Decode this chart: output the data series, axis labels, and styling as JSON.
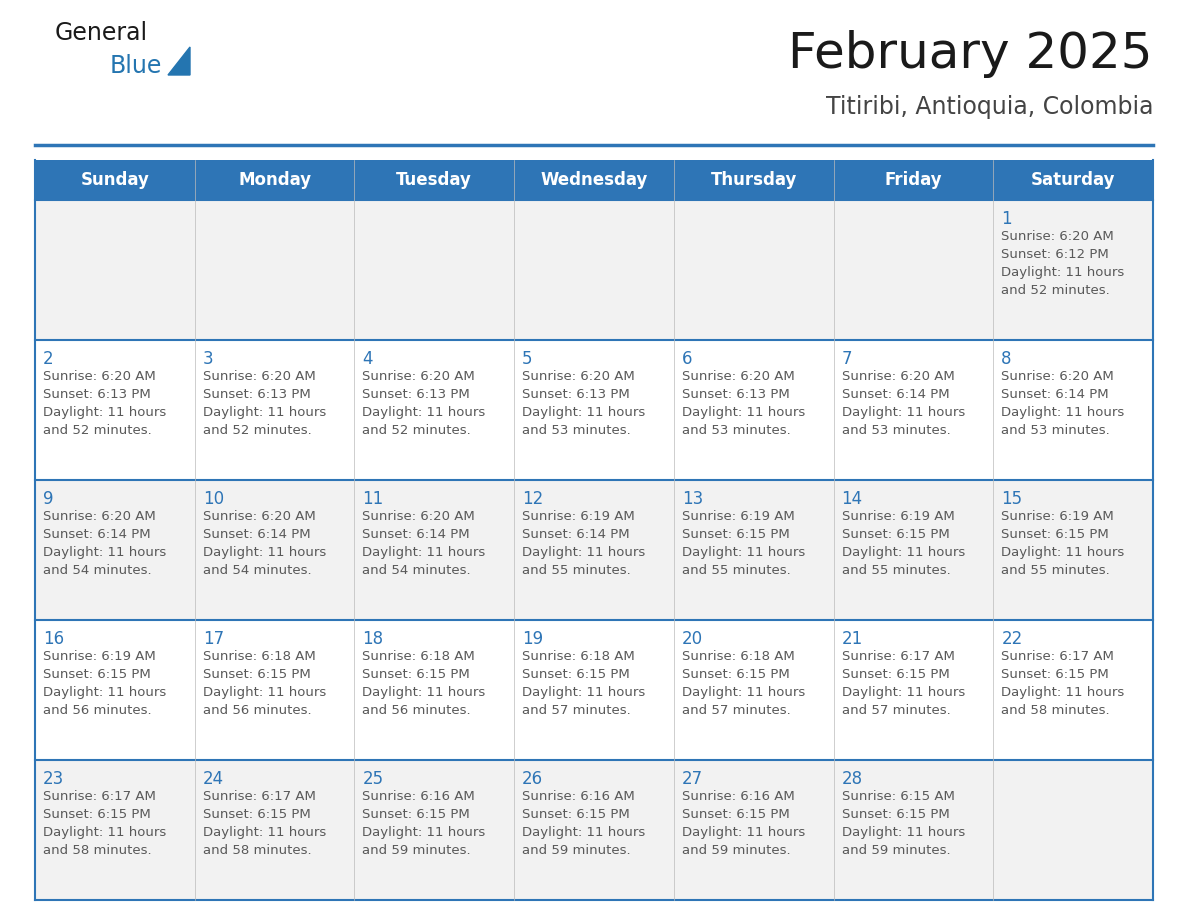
{
  "title": "February 2025",
  "subtitle": "Titiribi, Antioquia, Colombia",
  "days_of_week": [
    "Sunday",
    "Monday",
    "Tuesday",
    "Wednesday",
    "Thursday",
    "Friday",
    "Saturday"
  ],
  "header_bg": "#2E75B6",
  "header_text": "#FFFFFF",
  "row_bg_light": "#F2F2F2",
  "row_bg_white": "#FFFFFF",
  "cell_text_color": "#595959",
  "day_num_color": "#2E75B6",
  "border_color": "#2E75B6",
  "title_color": "#1a1a1a",
  "subtitle_color": "#444444",
  "logo_general_color": "#1a1a1a",
  "logo_blue_color": "#2475B0",
  "calendar_data": [
    [
      null,
      null,
      null,
      null,
      null,
      null,
      {
        "day": 1,
        "sunrise": "6:20 AM",
        "sunset": "6:12 PM",
        "daylight": "11 hours and 52 minutes."
      }
    ],
    [
      {
        "day": 2,
        "sunrise": "6:20 AM",
        "sunset": "6:13 PM",
        "daylight": "11 hours and 52 minutes."
      },
      {
        "day": 3,
        "sunrise": "6:20 AM",
        "sunset": "6:13 PM",
        "daylight": "11 hours and 52 minutes."
      },
      {
        "day": 4,
        "sunrise": "6:20 AM",
        "sunset": "6:13 PM",
        "daylight": "11 hours and 52 minutes."
      },
      {
        "day": 5,
        "sunrise": "6:20 AM",
        "sunset": "6:13 PM",
        "daylight": "11 hours and 53 minutes."
      },
      {
        "day": 6,
        "sunrise": "6:20 AM",
        "sunset": "6:13 PM",
        "daylight": "11 hours and 53 minutes."
      },
      {
        "day": 7,
        "sunrise": "6:20 AM",
        "sunset": "6:14 PM",
        "daylight": "11 hours and 53 minutes."
      },
      {
        "day": 8,
        "sunrise": "6:20 AM",
        "sunset": "6:14 PM",
        "daylight": "11 hours and 53 minutes."
      }
    ],
    [
      {
        "day": 9,
        "sunrise": "6:20 AM",
        "sunset": "6:14 PM",
        "daylight": "11 hours and 54 minutes."
      },
      {
        "day": 10,
        "sunrise": "6:20 AM",
        "sunset": "6:14 PM",
        "daylight": "11 hours and 54 minutes."
      },
      {
        "day": 11,
        "sunrise": "6:20 AM",
        "sunset": "6:14 PM",
        "daylight": "11 hours and 54 minutes."
      },
      {
        "day": 12,
        "sunrise": "6:19 AM",
        "sunset": "6:14 PM",
        "daylight": "11 hours and 55 minutes."
      },
      {
        "day": 13,
        "sunrise": "6:19 AM",
        "sunset": "6:15 PM",
        "daylight": "11 hours and 55 minutes."
      },
      {
        "day": 14,
        "sunrise": "6:19 AM",
        "sunset": "6:15 PM",
        "daylight": "11 hours and 55 minutes."
      },
      {
        "day": 15,
        "sunrise": "6:19 AM",
        "sunset": "6:15 PM",
        "daylight": "11 hours and 55 minutes."
      }
    ],
    [
      {
        "day": 16,
        "sunrise": "6:19 AM",
        "sunset": "6:15 PM",
        "daylight": "11 hours and 56 minutes."
      },
      {
        "day": 17,
        "sunrise": "6:18 AM",
        "sunset": "6:15 PM",
        "daylight": "11 hours and 56 minutes."
      },
      {
        "day": 18,
        "sunrise": "6:18 AM",
        "sunset": "6:15 PM",
        "daylight": "11 hours and 56 minutes."
      },
      {
        "day": 19,
        "sunrise": "6:18 AM",
        "sunset": "6:15 PM",
        "daylight": "11 hours and 57 minutes."
      },
      {
        "day": 20,
        "sunrise": "6:18 AM",
        "sunset": "6:15 PM",
        "daylight": "11 hours and 57 minutes."
      },
      {
        "day": 21,
        "sunrise": "6:17 AM",
        "sunset": "6:15 PM",
        "daylight": "11 hours and 57 minutes."
      },
      {
        "day": 22,
        "sunrise": "6:17 AM",
        "sunset": "6:15 PM",
        "daylight": "11 hours and 58 minutes."
      }
    ],
    [
      {
        "day": 23,
        "sunrise": "6:17 AM",
        "sunset": "6:15 PM",
        "daylight": "11 hours and 58 minutes."
      },
      {
        "day": 24,
        "sunrise": "6:17 AM",
        "sunset": "6:15 PM",
        "daylight": "11 hours and 58 minutes."
      },
      {
        "day": 25,
        "sunrise": "6:16 AM",
        "sunset": "6:15 PM",
        "daylight": "11 hours and 59 minutes."
      },
      {
        "day": 26,
        "sunrise": "6:16 AM",
        "sunset": "6:15 PM",
        "daylight": "11 hours and 59 minutes."
      },
      {
        "day": 27,
        "sunrise": "6:16 AM",
        "sunset": "6:15 PM",
        "daylight": "11 hours and 59 minutes."
      },
      {
        "day": 28,
        "sunrise": "6:15 AM",
        "sunset": "6:15 PM",
        "daylight": "11 hours and 59 minutes."
      },
      null
    ]
  ],
  "figsize": [
    11.88,
    9.18
  ],
  "dpi": 100
}
